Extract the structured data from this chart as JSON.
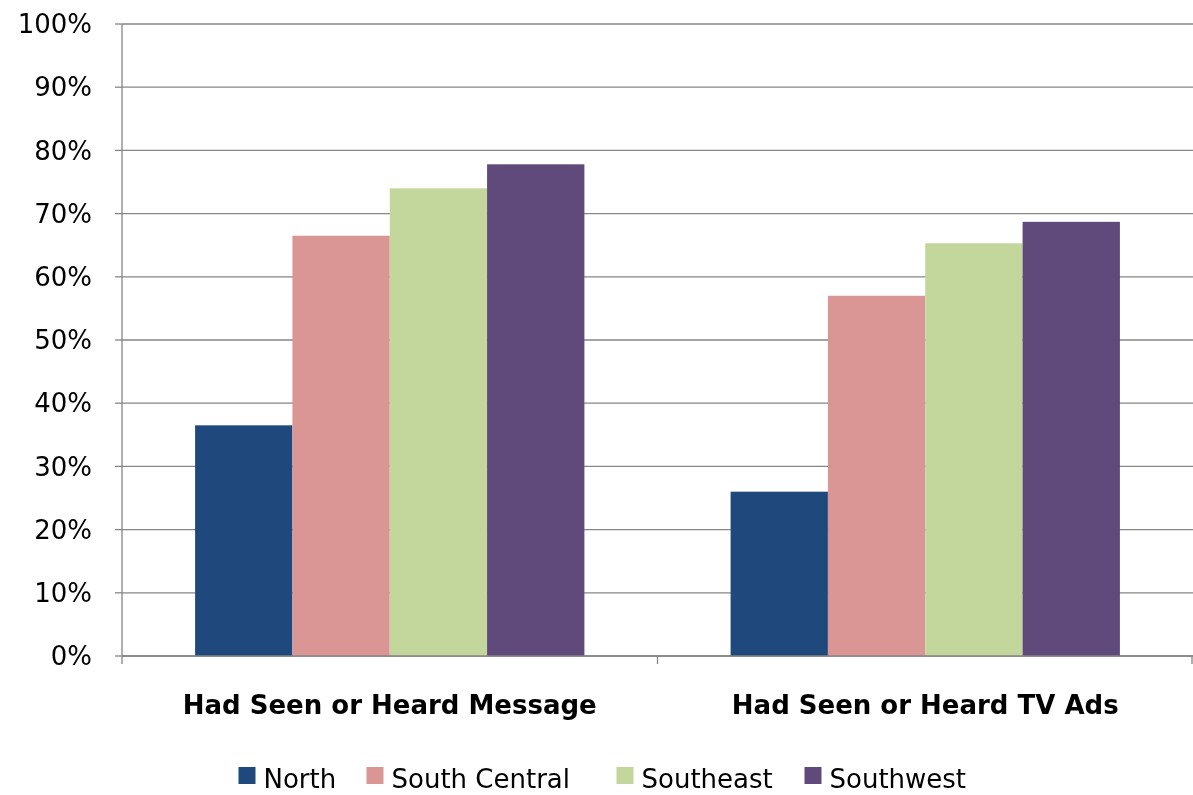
{
  "chart_data": {
    "type": "bar",
    "categories": [
      "Had Seen or Heard Message",
      "Had Seen or Heard TV Ads"
    ],
    "series": [
      {
        "name": "North",
        "color": "#1f497d",
        "values": [
          36.5,
          26
        ]
      },
      {
        "name": "South Central",
        "color": "#d99694",
        "values": [
          66.5,
          57
        ]
      },
      {
        "name": "Southeast",
        "color": "#c3d69b",
        "values": [
          74,
          65.3
        ]
      },
      {
        "name": "Southwest",
        "color": "#604a7b",
        "values": [
          77.8,
          68.7
        ]
      }
    ],
    "ylim": [
      0,
      100
    ],
    "yticks": [
      {
        "value": 0,
        "label": "0%"
      },
      {
        "value": 10,
        "label": "10%"
      },
      {
        "value": 20,
        "label": "20%"
      },
      {
        "value": 30,
        "label": "30%"
      },
      {
        "value": 40,
        "label": "40%"
      },
      {
        "value": 50,
        "label": "50%"
      },
      {
        "value": 60,
        "label": "60%"
      },
      {
        "value": 70,
        "label": "70%"
      },
      {
        "value": 80,
        "label": "80%"
      },
      {
        "value": 90,
        "label": "90%"
      },
      {
        "value": 100,
        "label": "100%"
      }
    ],
    "grid": "y",
    "legend": "bottom"
  }
}
